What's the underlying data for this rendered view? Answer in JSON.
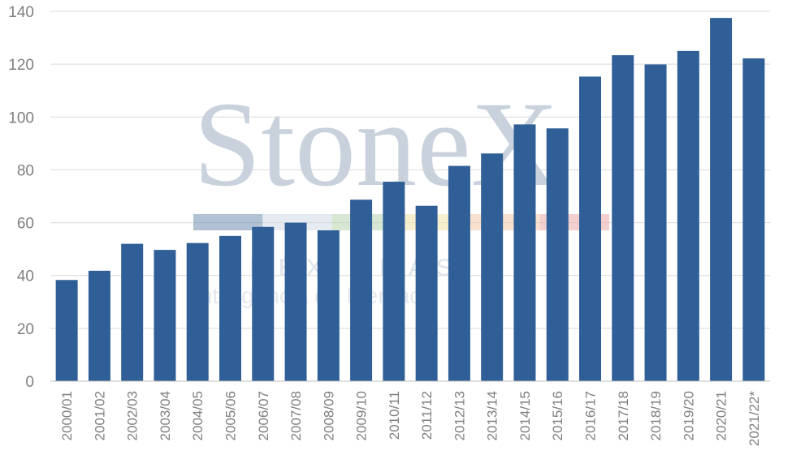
{
  "chart_data": {
    "type": "bar",
    "categories": [
      "2000/01",
      "2001/02",
      "2002/03",
      "2003/04",
      "2004/05",
      "2005/06",
      "2006/07",
      "2007/08",
      "2008/09",
      "2009/10",
      "2010/11",
      "2011/12",
      "2012/13",
      "2013/14",
      "2014/15",
      "2015/16",
      "2016/17",
      "2017/18",
      "2018/19",
      "2019/20",
      "2020/21",
      "2021/22*"
    ],
    "values": [
      38.3,
      41.8,
      52.0,
      49.7,
      52.3,
      55.0,
      58.4,
      60.0,
      57.1,
      68.7,
      75.5,
      66.4,
      81.5,
      86.2,
      97.2,
      95.7,
      115.3,
      123.4,
      119.9,
      125.0,
      137.5,
      122.2
    ],
    "ylim": [
      0,
      140
    ],
    "yticks": [
      0,
      20,
      40,
      60,
      80,
      100,
      120,
      140
    ],
    "grid": true,
    "bar_color": "#2f5f96",
    "title": "",
    "xlabel": "",
    "ylabel": ""
  },
  "watermark": {
    "brand": "StoneX",
    "line1": "TONEX BRASIL",
    "line2": "Inteligência de Mercado",
    "colors": [
      "#6f8fae",
      "#d2dbe5",
      "#b7d4b0",
      "#efe3a8",
      "#f3c9a8",
      "#e9a7a7"
    ]
  }
}
